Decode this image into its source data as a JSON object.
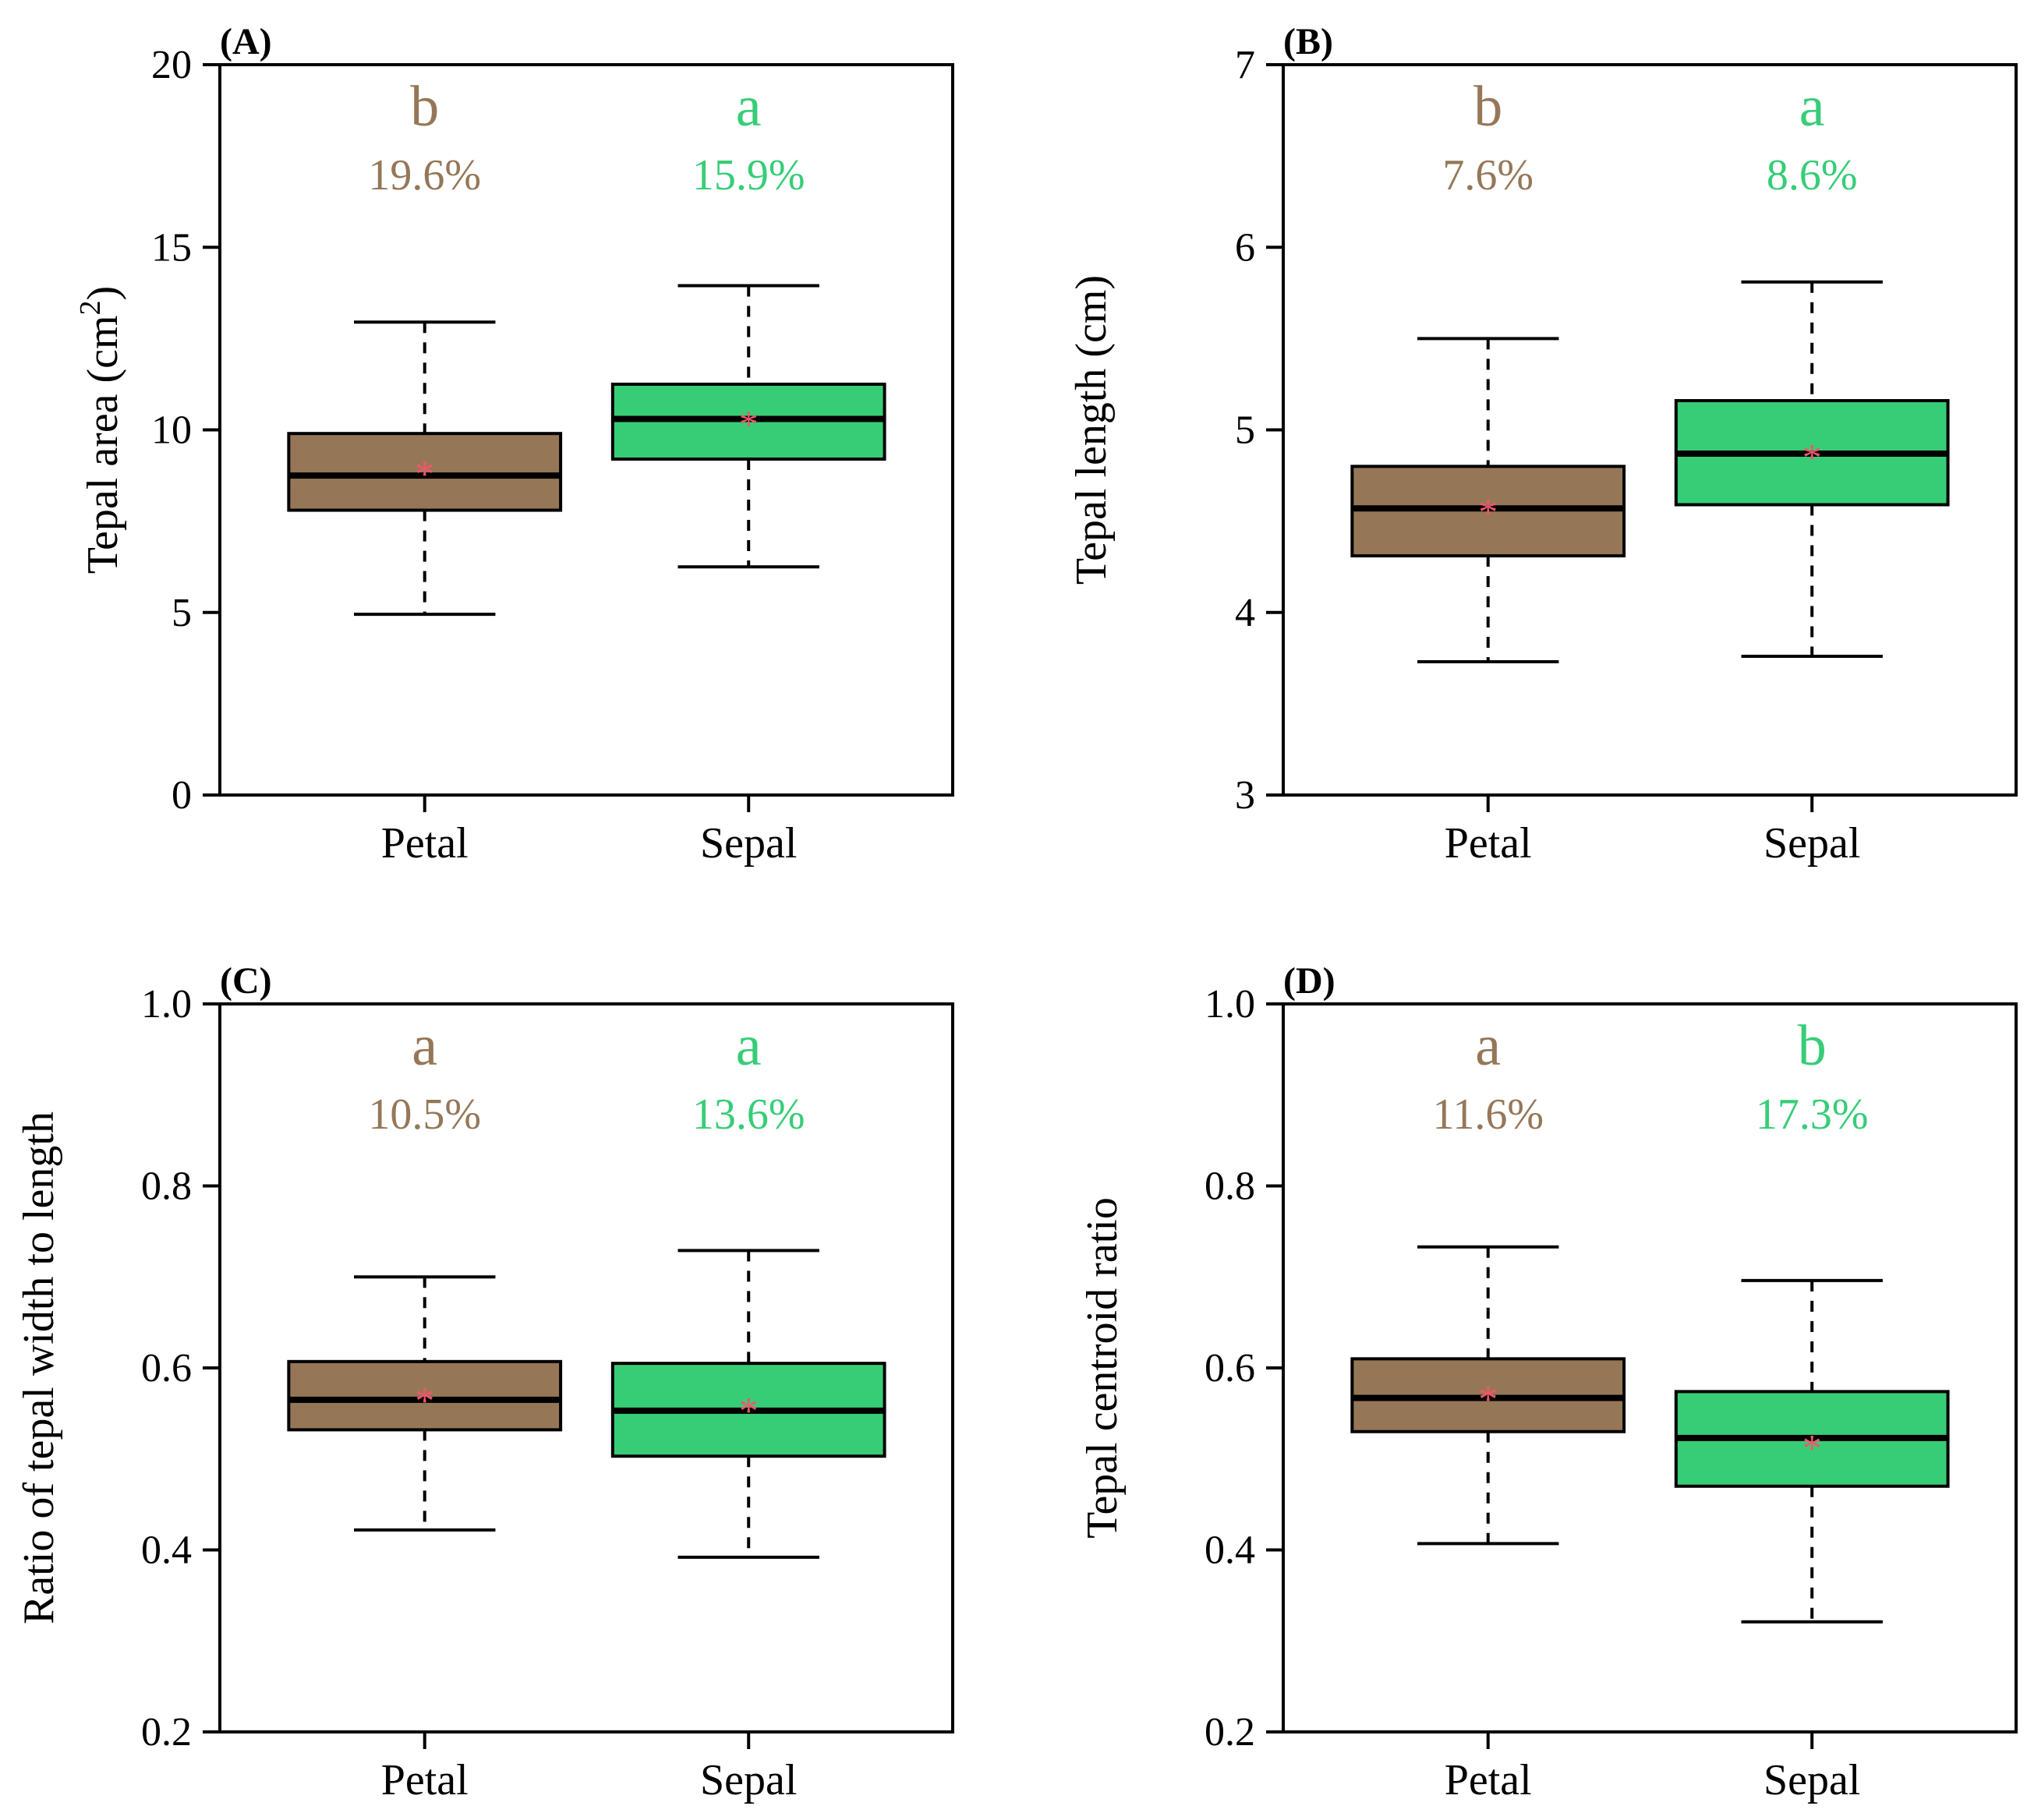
{
  "colors": {
    "petal": "#957758",
    "sepal": "#37cd77",
    "mean": "#f2566a"
  },
  "chart_data": [
    {
      "type": "boxplot",
      "panel": "(A)",
      "ylabel": "Tepal area (cm",
      "ylabel_sup": "2",
      "ylabel_end": ")",
      "ylim": [
        0,
        20
      ],
      "yticks": [
        0,
        5,
        10,
        15,
        20
      ],
      "ytick_labels": [
        "0",
        "5",
        "10",
        "15",
        "20"
      ],
      "categories": [
        "Petal",
        "Sepal"
      ],
      "series": [
        {
          "name": "Petal",
          "whisker_low": 4.95,
          "q1": 7.8,
          "median": 8.75,
          "q3": 9.9,
          "whisker_high": 12.95,
          "mean": 9.0,
          "letter": "b",
          "cv": "19.6%"
        },
        {
          "name": "Sepal",
          "whisker_low": 6.25,
          "q1": 9.2,
          "median": 10.3,
          "q3": 11.25,
          "whisker_high": 13.95,
          "mean": 10.35,
          "letter": "a",
          "cv": "15.9%"
        }
      ]
    },
    {
      "type": "boxplot",
      "panel": "(B)",
      "ylabel": "Tepal length (cm)",
      "ylabel_sup": "",
      "ylabel_end": "",
      "ylim": [
        3,
        7
      ],
      "yticks": [
        3,
        4,
        5,
        6,
        7
      ],
      "ytick_labels": [
        "3",
        "4",
        "5",
        "6",
        "7"
      ],
      "categories": [
        "Petal",
        "Sepal"
      ],
      "series": [
        {
          "name": "Petal",
          "whisker_low": 3.73,
          "q1": 4.31,
          "median": 4.57,
          "q3": 4.8,
          "whisker_high": 5.5,
          "mean": 4.59,
          "letter": "b",
          "cv": "7.6%"
        },
        {
          "name": "Sepal",
          "whisker_low": 3.76,
          "q1": 4.59,
          "median": 4.87,
          "q3": 5.16,
          "whisker_high": 5.81,
          "mean": 4.89,
          "letter": "a",
          "cv": "8.6%"
        }
      ]
    },
    {
      "type": "boxplot",
      "panel": "(C)",
      "ylabel": "Ratio of tepal width to length",
      "ylabel_sup": "",
      "ylabel_end": "",
      "ylim": [
        0.2,
        1.0
      ],
      "yticks": [
        0.2,
        0.4,
        0.6,
        0.8,
        1.0
      ],
      "ytick_labels": [
        "0.2",
        "0.4",
        "0.6",
        "0.8",
        "1.0"
      ],
      "categories": [
        "Petal",
        "Sepal"
      ],
      "series": [
        {
          "name": "Petal",
          "whisker_low": 0.422,
          "q1": 0.532,
          "median": 0.565,
          "q3": 0.607,
          "whisker_high": 0.7,
          "mean": 0.572,
          "letter": "a",
          "cv": "10.5%"
        },
        {
          "name": "Sepal",
          "whisker_low": 0.392,
          "q1": 0.503,
          "median": 0.553,
          "q3": 0.605,
          "whisker_high": 0.729,
          "mean": 0.561,
          "letter": "a",
          "cv": "13.6%"
        }
      ]
    },
    {
      "type": "boxplot",
      "panel": "(D)",
      "ylabel": "Tepal centroid ratio",
      "ylabel_sup": "",
      "ylabel_end": "",
      "ylim": [
        0.2,
        1.0
      ],
      "yticks": [
        0.2,
        0.4,
        0.6,
        0.8,
        1.0
      ],
      "ytick_labels": [
        "0.2",
        "0.4",
        "0.6",
        "0.8",
        "1.0"
      ],
      "categories": [
        "Petal",
        "Sepal"
      ],
      "series": [
        {
          "name": "Petal",
          "whisker_low": 0.407,
          "q1": 0.53,
          "median": 0.567,
          "q3": 0.61,
          "whisker_high": 0.733,
          "mean": 0.574,
          "letter": "a",
          "cv": "11.6%"
        },
        {
          "name": "Sepal",
          "whisker_low": 0.321,
          "q1": 0.47,
          "median": 0.523,
          "q3": 0.574,
          "whisker_high": 0.696,
          "mean": 0.52,
          "letter": "b",
          "cv": "17.3%"
        }
      ]
    }
  ]
}
